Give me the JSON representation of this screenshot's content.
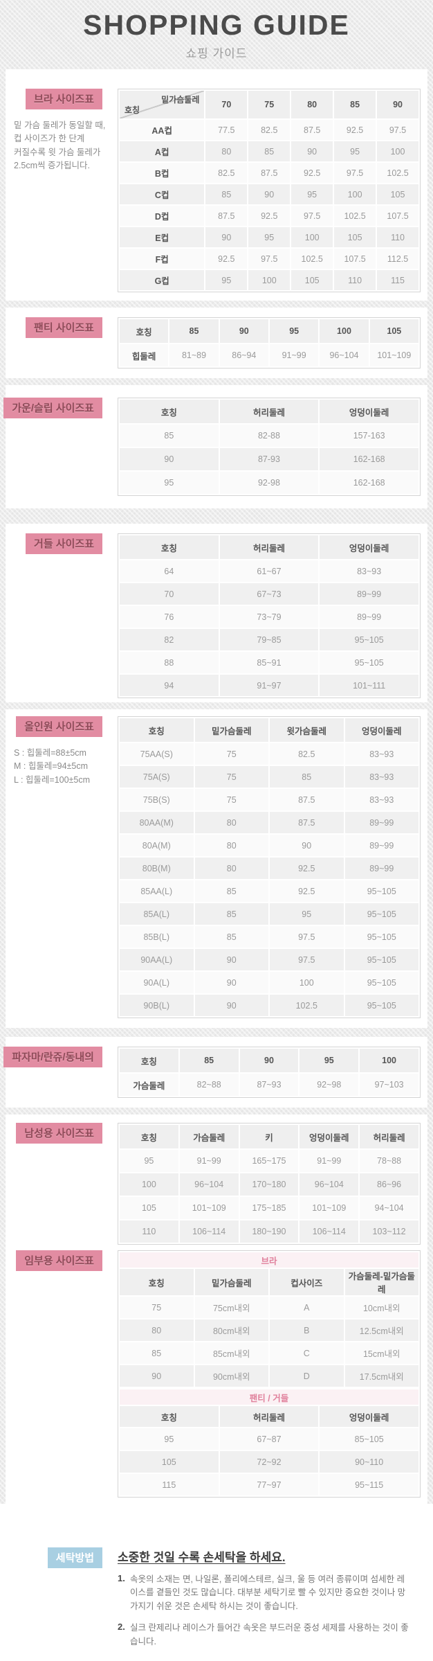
{
  "page": {
    "title": "SHOPPING GUIDE",
    "subtitle": "쇼핑 가이드"
  },
  "colors": {
    "label_pink_bg": "#e28ca2",
    "label_pink_text": "#8e4a58",
    "label_blue_bg": "#a8cfe2",
    "band_pink_text": "#e0809c",
    "band_pink_bg": "#fbf1f4"
  },
  "sections": {
    "bra": {
      "label": "브라 사이즈표",
      "note_lines": [
        "밑 가슴 둘레가 동일할 때,",
        "컵 사이즈가 한 단계",
        "커질수록 윗 가슴 둘레가",
        "2.5cm씩 증가됩니다."
      ],
      "table": {
        "corner_top": "밑가슴둘레",
        "corner_bottom": "호칭",
        "cols": [
          "70",
          "75",
          "80",
          "85",
          "90"
        ],
        "rows": [
          [
            "AA컵",
            "77.5",
            "82.5",
            "87.5",
            "92.5",
            "97.5"
          ],
          [
            "A컵",
            "80",
            "85",
            "90",
            "95",
            "100"
          ],
          [
            "B컵",
            "82.5",
            "87.5",
            "92.5",
            "97.5",
            "102.5"
          ],
          [
            "C컵",
            "85",
            "90",
            "95",
            "100",
            "105"
          ],
          [
            "D컵",
            "87.5",
            "92.5",
            "97.5",
            "102.5",
            "107.5"
          ],
          [
            "E컵",
            "90",
            "95",
            "100",
            "105",
            "110"
          ],
          [
            "F컵",
            "92.5",
            "97.5",
            "102.5",
            "107.5",
            "112.5"
          ],
          [
            "G컵",
            "95",
            "100",
            "105",
            "110",
            "115"
          ]
        ]
      }
    },
    "panty": {
      "label": "팬티 사이즈표",
      "table": {
        "headers": [
          "호칭",
          "85",
          "90",
          "95",
          "100",
          "105"
        ],
        "rows": [
          [
            "힙둘레",
            "81~89",
            "86~94",
            "91~99",
            "96~104",
            "101~109"
          ]
        ]
      }
    },
    "gown": {
      "label": "가운/슬립 사이즈표",
      "table": {
        "headers": [
          "호칭",
          "허리둘레",
          "엉덩이둘레"
        ],
        "rows": [
          [
            "85",
            "82-88",
            "157-163"
          ],
          [
            "90",
            "87-93",
            "162-168"
          ],
          [
            "95",
            "92-98",
            "162-168"
          ]
        ]
      }
    },
    "girdle": {
      "label": "거들 사이즈표",
      "table": {
        "headers": [
          "호칭",
          "허리둘레",
          "엉덩이둘레"
        ],
        "rows": [
          [
            "64",
            "61~67",
            "83~93"
          ],
          [
            "70",
            "67~73",
            "89~99"
          ],
          [
            "76",
            "73~79",
            "89~99"
          ],
          [
            "82",
            "79~85",
            "95~105"
          ],
          [
            "88",
            "85~91",
            "95~105"
          ],
          [
            "94",
            "91~97",
            "101~111"
          ]
        ]
      }
    },
    "allinone": {
      "label": "올인원 사이즈표",
      "note_lines": [
        "S : 힙둘레=88±5cm",
        "M : 힙둘레=94±5cm",
        "L : 힙둘레=100±5cm"
      ],
      "table": {
        "headers": [
          "호칭",
          "밑가슴둘레",
          "윗가슴둘레",
          "엉덩이둘레"
        ],
        "rows": [
          [
            "75AA(S)",
            "75",
            "82.5",
            "83~93"
          ],
          [
            "75A(S)",
            "75",
            "85",
            "83~93"
          ],
          [
            "75B(S)",
            "75",
            "87.5",
            "83~93"
          ],
          [
            "80AA(M)",
            "80",
            "87.5",
            "89~99"
          ],
          [
            "80A(M)",
            "80",
            "90",
            "89~99"
          ],
          [
            "80B(M)",
            "80",
            "92.5",
            "89~99"
          ],
          [
            "85AA(L)",
            "85",
            "92.5",
            "95~105"
          ],
          [
            "85A(L)",
            "85",
            "95",
            "95~105"
          ],
          [
            "85B(L)",
            "85",
            "97.5",
            "95~105"
          ],
          [
            "90AA(L)",
            "90",
            "97.5",
            "95~105"
          ],
          [
            "90A(L)",
            "90",
            "100",
            "95~105"
          ],
          [
            "90B(L)",
            "90",
            "102.5",
            "95~105"
          ]
        ]
      }
    },
    "pajama": {
      "label": "파자마/란쥬/동내의",
      "table": {
        "headers": [
          "호칭",
          "85",
          "90",
          "95",
          "100"
        ],
        "rows": [
          [
            "가슴둘레",
            "82~88",
            "87~93",
            "92~98",
            "97~103"
          ]
        ]
      }
    },
    "mens": {
      "label": "남성용 사이즈표",
      "table": {
        "headers": [
          "호칭",
          "가슴둘레",
          "키",
          "엉덩이둘레",
          "허리둘레"
        ],
        "rows": [
          [
            "95",
            "91~99",
            "165~175",
            "91~99",
            "78~88"
          ],
          [
            "100",
            "96~104",
            "170~180",
            "96~104",
            "86~96"
          ],
          [
            "105",
            "101~109",
            "175~185",
            "101~109",
            "94~104"
          ],
          [
            "110",
            "106~114",
            "180~190",
            "106~114",
            "103~112"
          ]
        ]
      }
    },
    "maternity": {
      "label": "임부용 사이즈표",
      "bra_table": {
        "band": "브라",
        "headers": [
          "호칭",
          "밑가슴둘레",
          "컵사이즈",
          "가슴둘레-밑가슴둘레"
        ],
        "rows": [
          [
            "75",
            "75cm내외",
            "A",
            "10cm내외"
          ],
          [
            "80",
            "80cm내외",
            "B",
            "12.5cm내외"
          ],
          [
            "85",
            "85cm내외",
            "C",
            "15cm내외"
          ],
          [
            "90",
            "90cm내외",
            "D",
            "17.5cm내외"
          ]
        ]
      },
      "pg_table": {
        "band": "팬티 / 거들",
        "headers": [
          "호칭",
          "허리둘레",
          "엉덩이둘레"
        ],
        "rows": [
          [
            "95",
            "67~87",
            "85~105"
          ],
          [
            "105",
            "72~92",
            "90~110"
          ],
          [
            "115",
            "77~97",
            "95~115"
          ]
        ]
      }
    },
    "washing": {
      "label": "세탁방법",
      "title": "소중한 것일 수록 손세탁을 하세요.",
      "items": [
        {
          "no": "1.",
          "text": "속옷의 소재는 면, 나일론, 폴리에스테르, 실크, 울 등 여러 종류이며 섬세한 레이스를 곁들인 것도 많습니다. 대부분 세탁기로 빨 수 있지만 중요한 것이나 망가지기 쉬운 것은 손세탁 하시는 것이 좋습니다."
        },
        {
          "no": "2.",
          "text": "실크 란제리나 레이스가 들어간 속옷은 부드러운 중성 세제를 사용하는 것이 좋습니다."
        }
      ]
    }
  }
}
